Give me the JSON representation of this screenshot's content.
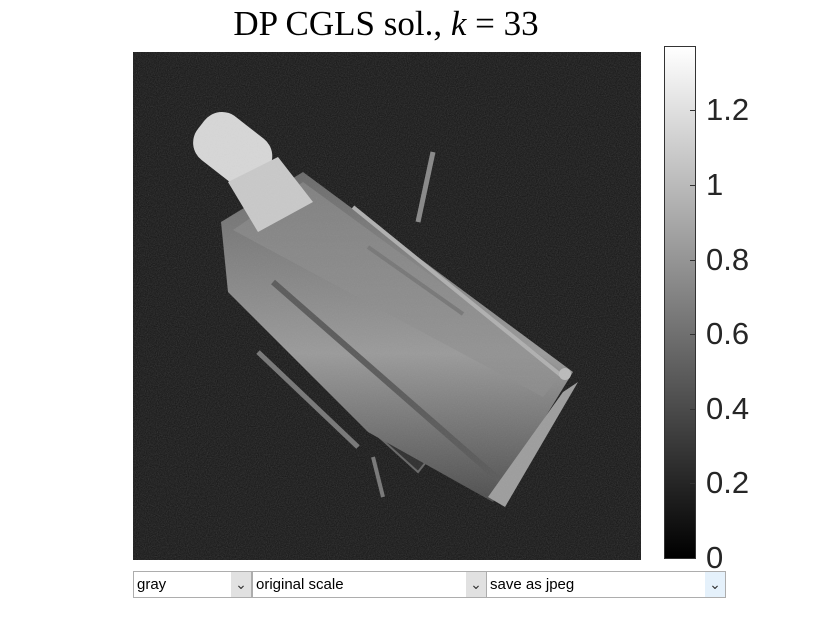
{
  "title": {
    "prefix": "DP CGLS sol., ",
    "var": "k",
    "suffix": " = 33"
  },
  "image": {
    "subject": "hubble-telescope-restoration",
    "colormap": "gray"
  },
  "colorbar": {
    "min": 0,
    "max": 1.37,
    "ticks": [
      {
        "value": 1.2,
        "label": "1.2"
      },
      {
        "value": 1.0,
        "label": "1"
      },
      {
        "value": 0.8,
        "label": "0.8"
      },
      {
        "value": 0.6,
        "label": "0.6"
      },
      {
        "value": 0.4,
        "label": "0.4"
      },
      {
        "value": 0.2,
        "label": "0.2"
      },
      {
        "value": 0.0,
        "label": "0"
      }
    ]
  },
  "controls": {
    "colormap_select": "gray",
    "scale_select": "original scale",
    "save_select": "save as jpeg",
    "arrow_glyph": "⌄"
  },
  "colors": {
    "background": "#ffffff",
    "image_bg": "#111111"
  }
}
